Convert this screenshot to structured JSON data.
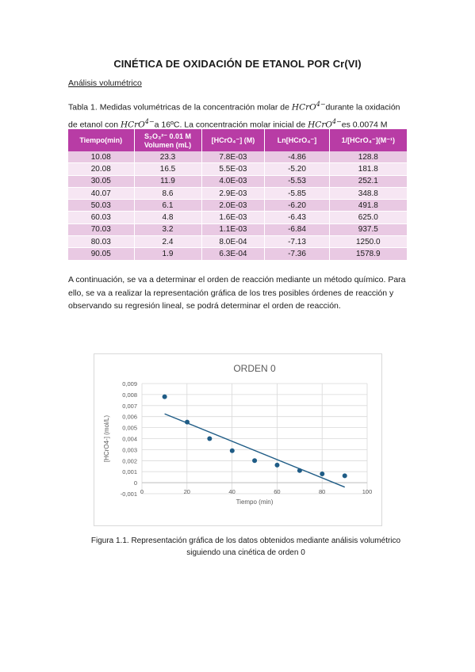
{
  "document": {
    "title": "CINÉTICA DE OXIDACIÓN DE ETANOL POR Cr(VI)",
    "section": "Análisis volumétrico",
    "table_caption": {
      "prefix": "Tabla 1. Medidas volumétricas de la concentración molar de ",
      "species": "HCrO",
      "charge": "4−",
      "middle1": "durante la oxidación de etanol con ",
      "middle2": "a 16ºC. La concentración molar inicial de ",
      "suffix": "es 0.0074 M"
    },
    "table": {
      "headers": [
        "Tiempo(min)",
        "S₂O₃²⁻ 0.01 M Volumen (mL)",
        "[HCrO₄⁻] (M)",
        "Ln[HCrO₄⁻]",
        "1/[HCrO₄⁻](M⁻¹)"
      ],
      "rows": [
        [
          "10.08",
          "23.3",
          "7.8E-03",
          "-4.86",
          "128.8"
        ],
        [
          "20.08",
          "16.5",
          "5.5E-03",
          "-5.20",
          "181.8"
        ],
        [
          "30.05",
          "11.9",
          "4.0E-03",
          "-5.53",
          "252.1"
        ],
        [
          "40.07",
          "8.6",
          "2.9E-03",
          "-5.85",
          "348.8"
        ],
        [
          "50.03",
          "6.1",
          "2.0E-03",
          "-6.20",
          "491.8"
        ],
        [
          "60.03",
          "4.8",
          "1.6E-03",
          "-6.43",
          "625.0"
        ],
        [
          "70.03",
          "3.2",
          "1.1E-03",
          "-6.84",
          "937.5"
        ],
        [
          "80.03",
          "2.4",
          "8.0E-04",
          "-7.13",
          "1250.0"
        ],
        [
          "90.05",
          "1.9",
          "6.3E-04",
          "-7.36",
          "1578.9"
        ]
      ]
    },
    "paragraph": "A continuación, se va a determinar el orden de reacción mediante un método químico. Para ello, se va a realizar la representación gráfica de los tres posibles órdenes de reacción y observando su regresión lineal, se podrá determinar el orden de reacción.",
    "figure_caption_line1": "Figura 1.1. Representación gráfica de los datos obtenidos mediante análisis volumétrico",
    "figure_caption_line2": "siguiendo una cinética de orden 0"
  },
  "colors": {
    "header_bg": "#b83ca5",
    "row_dark": "#e9c9e3",
    "row_light": "#f6e6f3",
    "marker": "#1f5c86",
    "trendline": "#1f5c86"
  },
  "chart_data": {
    "type": "scatter",
    "title": "ORDEN 0",
    "xlabel": "Tiempo (min)",
    "ylabel": "[HCrO4-] (mol/L)",
    "xlim": [
      0,
      100
    ],
    "ylim": [
      -0.001,
      0.009
    ],
    "xticks": [
      "0",
      "20",
      "40",
      "60",
      "80",
      "100"
    ],
    "yticks": [
      "-0,001",
      "0",
      "0,001",
      "0,002",
      "0,003",
      "0,004",
      "0,005",
      "0,006",
      "0,007",
      "0,008",
      "0,009"
    ],
    "grid": true,
    "trendline": "linear",
    "x": [
      10.08,
      20.08,
      30.05,
      40.07,
      50.03,
      60.03,
      70.03,
      80.03,
      90.05
    ],
    "y": [
      0.0078,
      0.0055,
      0.004,
      0.0029,
      0.002,
      0.0016,
      0.0011,
      0.0008,
      0.00063
    ]
  }
}
